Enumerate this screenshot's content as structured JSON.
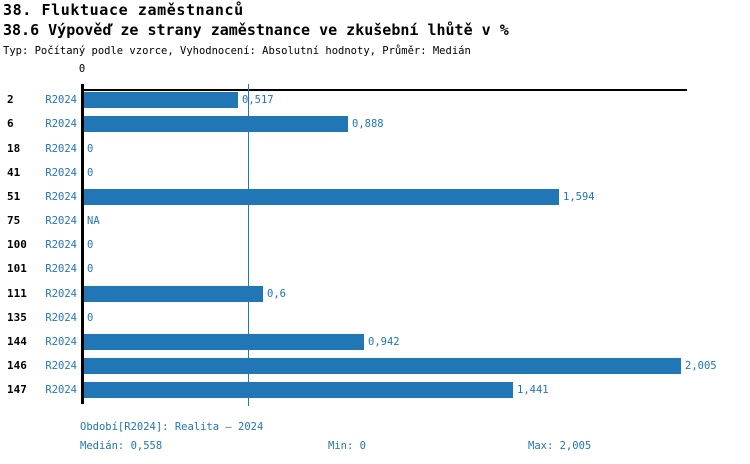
{
  "header": {
    "title": "38. Fluktuace zaměstnanců",
    "subtitle": "38.6 Výpověď ze strany zaměstnance ve zkušební lhůtě v %",
    "meta": "Typ: Počítaný podle vzorce, Vyhodnocení: Absolutní hodnoty, Průměr: Medián"
  },
  "chart_data": {
    "type": "bar",
    "orientation": "horizontal",
    "title": "38.6 Výpověď ze strany zaměstnance ve zkušební lhůtě v %",
    "series_label": "R2024",
    "categories": [
      "2",
      "6",
      "18",
      "41",
      "51",
      "75",
      "100",
      "101",
      "111",
      "135",
      "144",
      "146",
      "147"
    ],
    "values": [
      0.517,
      0.888,
      0,
      0,
      1.594,
      null,
      0,
      0,
      0.6,
      0,
      0.942,
      2.005,
      1.441
    ],
    "value_labels": [
      "0,517",
      "0,888",
      "0",
      "0",
      "1,594",
      "NA",
      "0",
      "0",
      "0,6",
      "0",
      "0,942",
      "2,005",
      "1,441"
    ],
    "xlim": [
      0,
      2.029
    ],
    "x_tick_labels": [
      "0"
    ],
    "median_value": 0.558,
    "grid": false,
    "legend_position": "none",
    "bar_color": "#2176b5",
    "label_color": "#2176b5",
    "axis_color": "#000000",
    "median_line_color": "#2176b5"
  },
  "footer": {
    "period": "Období[R2024]: Realita – 2024",
    "median": "Medián: 0,558",
    "min": "Min: 0",
    "max": "Max: 2,005"
  }
}
